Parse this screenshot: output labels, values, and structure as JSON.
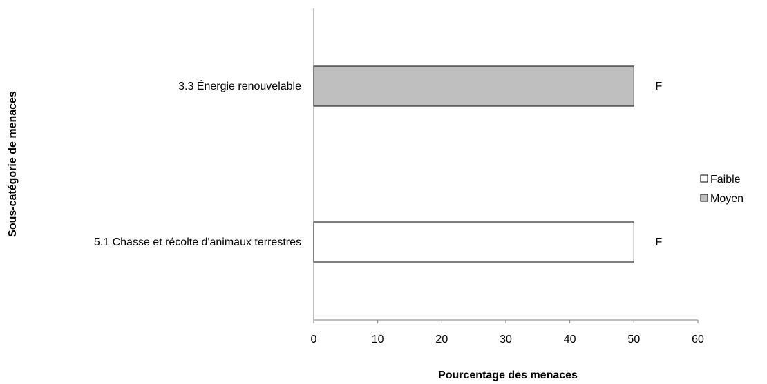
{
  "chart_data": {
    "type": "bar",
    "orientation": "horizontal",
    "categories": [
      "3.3 Énergie renouvelable",
      "5.1 Chasse et récolte d'animaux terrestres"
    ],
    "values": [
      50,
      50
    ],
    "bar_series": [
      "Moyen",
      "Faible"
    ],
    "bar_labels": [
      "F",
      "F"
    ],
    "series": [
      {
        "name": "Faible",
        "color": "#ffffff"
      },
      {
        "name": "Moyen",
        "color": "#bfbfbf"
      }
    ],
    "xlabel": "Pourcentage des menaces",
    "ylabel": "Sous-catégorie de menaces",
    "xlim": [
      0,
      60
    ],
    "xticks": [
      "0",
      "10",
      "20",
      "30",
      "40",
      "50",
      "60"
    ],
    "grid": false,
    "legend_position": "right"
  }
}
